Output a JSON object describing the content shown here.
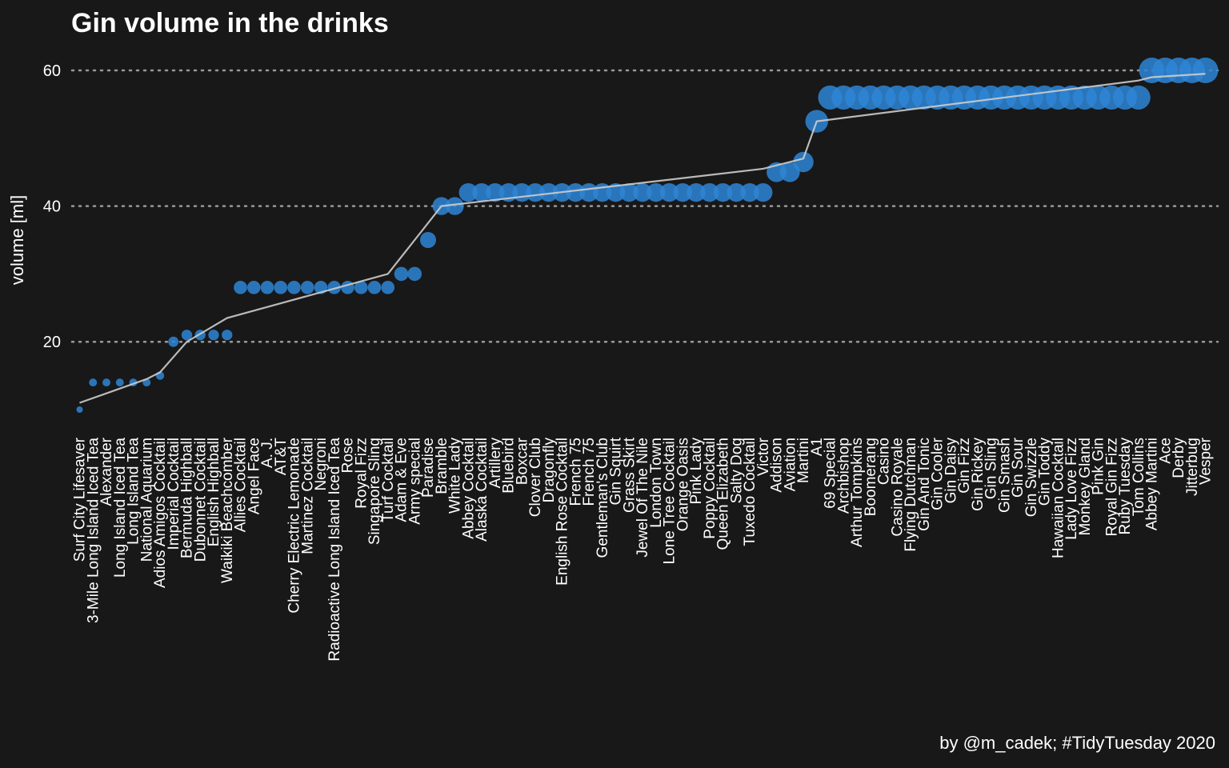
{
  "chart_data": {
    "type": "scatter",
    "title": "Gin volume in the drinks",
    "ylabel": "volume [ml]",
    "xlabel": "",
    "caption": "by @m_cadek; #TidyTuesday 2020",
    "ylim": [
      4,
      63
    ],
    "yticks": [
      20,
      40,
      60
    ],
    "grid": "horizontal dotted",
    "colors": {
      "background": "#181818",
      "point": "#2e86d6",
      "trend": "#cccccc",
      "grid": "#9a9a9a",
      "text": "#ffffff"
    },
    "categories": [
      "Surf City Lifesaver",
      "3-Mile Long Island Iced Tea",
      "Alexander",
      "Long Island Iced Tea",
      "Long Island Tea",
      "National Aquarium",
      "Adios Amigos Cocktail",
      "Imperial Cocktail",
      "Bermuda Highball",
      "Dubonnet Cocktail",
      "English Highball",
      "Waikiki Beachcomber",
      "Allies Cocktail",
      "Angel Face",
      "A. J.",
      "AT&T",
      "Cherry Electric Lemonade",
      "Martinez Cocktail",
      "Negroni",
      "Radioactive Long Island Iced Tea",
      "Rose",
      "Royal Fizz",
      "Singapore Sling",
      "Turf Cocktail",
      "Adam & Eve",
      "Army special",
      "Paradise",
      "Bramble",
      "White Lady",
      "Abbey Cocktail",
      "Alaska Cocktail",
      "Artillery",
      "Bluebird",
      "Boxcar",
      "Clover Club",
      "Dragonfly",
      "English Rose Cocktail",
      "French 75",
      "French 75",
      "Gentleman's Club",
      "Gin Squirt",
      "Grass Skirt",
      "Jewel Of The Nile",
      "London Town",
      "Lone Tree Cocktail",
      "Orange Oasis",
      "Pink Lady",
      "Poppy Cocktail",
      "Queen Elizabeth",
      "Salty Dog",
      "Tuxedo Cocktail",
      "Victor",
      "Addison",
      "Aviation",
      "Martini",
      "A1",
      "69 Special",
      "Archbishop",
      "Arthur Tompkins",
      "Boomerang",
      "Casino",
      "Casino Royale",
      "Flying Dutchman",
      "Gin And Tonic",
      "Gin Cooler",
      "Gin Daisy",
      "Gin Fizz",
      "Gin Rickey",
      "Gin Sling",
      "Gin Smash",
      "Gin Sour",
      "Gin Swizzle",
      "Gin Toddy",
      "Hawaiian Cocktail",
      "Lady Love Fizz",
      "Monkey Gland",
      "Pink Gin",
      "Royal Gin Fizz",
      "Ruby Tuesday",
      "Tom Collins",
      "Abbey Martini",
      "Ace",
      "Derby",
      "Jitterbug",
      "Vesper"
    ],
    "values": [
      10,
      14,
      14,
      14,
      14,
      14,
      15,
      20,
      21,
      21,
      21,
      21,
      28,
      28,
      28,
      28,
      28,
      28,
      28,
      28,
      28,
      28,
      28,
      28,
      30,
      30,
      35,
      40,
      40,
      42,
      42,
      42,
      42,
      42,
      42,
      42,
      42,
      42,
      42,
      42,
      42,
      42,
      42,
      42,
      42,
      42,
      42,
      42,
      42,
      42,
      42,
      42,
      45,
      45,
      46.5,
      52.5,
      56,
      56,
      56,
      56,
      56,
      56,
      56,
      56,
      56,
      56,
      56,
      56,
      56,
      56,
      56,
      56,
      56,
      56,
      56,
      56,
      56,
      56,
      56,
      56,
      60,
      60,
      60,
      60,
      60
    ],
    "trend": [
      [
        1,
        11
      ],
      [
        6,
        14.5
      ],
      [
        7,
        15.5
      ],
      [
        9,
        20
      ],
      [
        12,
        23.5
      ],
      [
        24,
        30
      ],
      [
        28,
        40
      ],
      [
        52,
        45.5
      ],
      [
        55,
        47
      ],
      [
        56,
        52.5
      ],
      [
        80,
        58.5
      ],
      [
        81,
        59
      ],
      [
        85,
        59.5
      ]
    ]
  }
}
